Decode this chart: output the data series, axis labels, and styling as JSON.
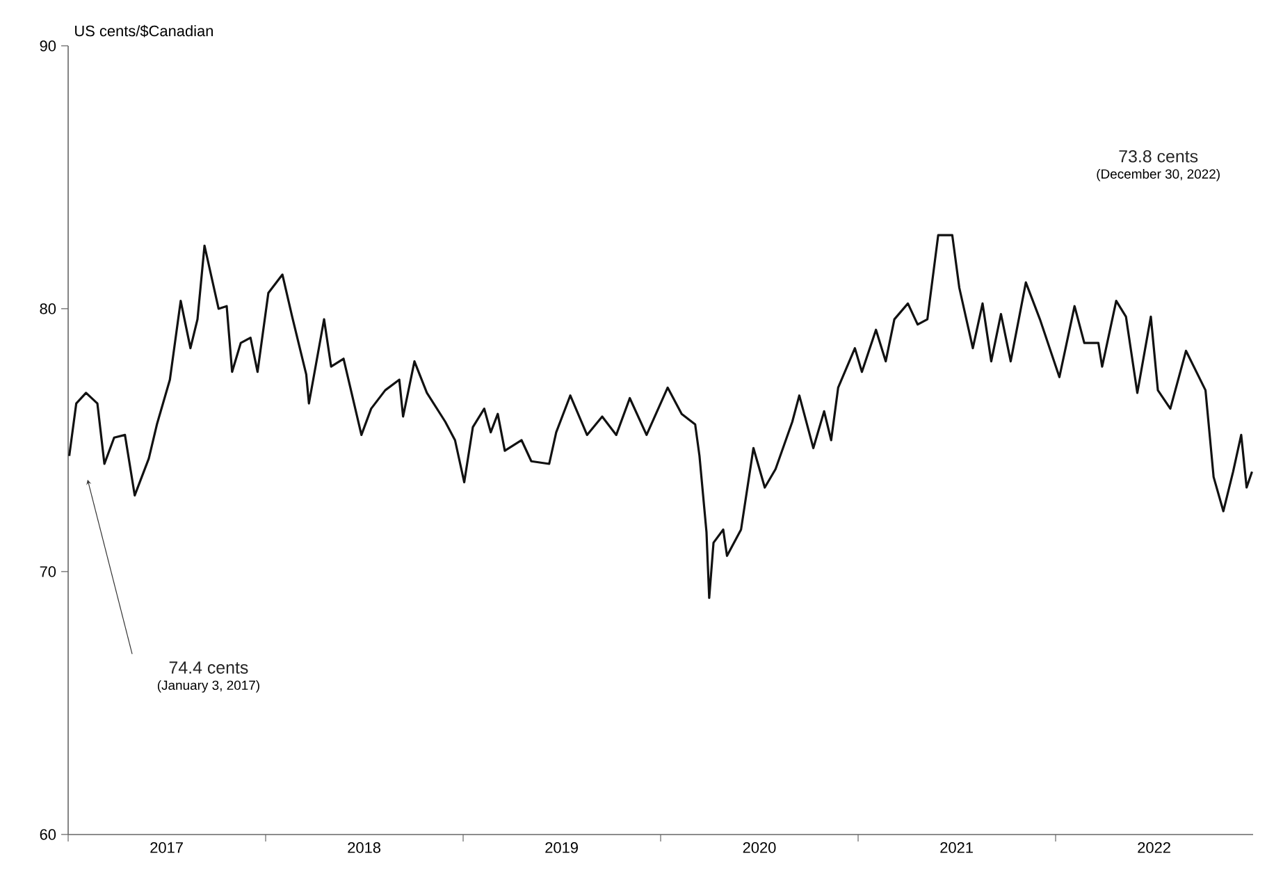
{
  "chart_data": {
    "type": "line",
    "ylabel": "US cents/$Canadian",
    "annotations": [
      "74.4 cents",
      "(January 3, 2017)",
      "73.8 cents",
      "(December 30, 2022)"
    ],
    "x": [
      "2017-01-03",
      "2017-01-16",
      "2017-02-03",
      "2017-02-24",
      "2017-03-09",
      "2017-03-27",
      "2017-04-16",
      "2017-05-04",
      "2017-05-30",
      "2017-06-14",
      "2017-07-08",
      "2017-07-28",
      "2017-08-15",
      "2017-08-28",
      "2017-09-10",
      "2017-10-06",
      "2017-10-21",
      "2017-10-31",
      "2017-11-16",
      "2017-12-04",
      "2017-12-17",
      "2018-01-06",
      "2018-02-01",
      "2018-02-19",
      "2018-03-17",
      "2018-03-22",
      "2018-04-19",
      "2018-05-02",
      "2018-05-25",
      "2018-06-27",
      "2018-07-15",
      "2018-08-10",
      "2018-09-05",
      "2018-09-12",
      "2018-10-03",
      "2018-10-26",
      "2018-11-29",
      "2018-12-17",
      "2019-01-03",
      "2019-01-19",
      "2019-02-09",
      "2019-02-21",
      "2019-03-06",
      "2019-03-19",
      "2019-04-19",
      "2019-05-07",
      "2019-06-09",
      "2019-06-22",
      "2019-07-18",
      "2019-08-18",
      "2019-09-15",
      "2019-10-11",
      "2019-11-05",
      "2019-12-06",
      "2020-01-14",
      "2020-02-09",
      "2020-03-05",
      "2020-03-13",
      "2020-03-26",
      "2020-03-31",
      "2020-04-08",
      "2020-04-26",
      "2020-05-03",
      "2020-05-29",
      "2020-06-21",
      "2020-07-12",
      "2020-08-01",
      "2020-09-01",
      "2020-09-14",
      "2020-10-10",
      "2020-10-30",
      "2020-11-12",
      "2020-11-25",
      "2020-12-26",
      "2021-01-08",
      "2021-02-03",
      "2021-02-21",
      "2021-03-09",
      "2021-04-03",
      "2021-04-21",
      "2021-05-09",
      "2021-05-29",
      "2021-06-24",
      "2021-07-07",
      "2021-08-01",
      "2021-08-19",
      "2021-09-04",
      "2021-09-22",
      "2021-10-10",
      "2021-11-07",
      "2021-12-03",
      "2022-01-08",
      "2022-02-05",
      "2022-02-23",
      "2022-03-21",
      "2022-03-28",
      "2022-04-23",
      "2022-05-11",
      "2022-06-01",
      "2022-06-26",
      "2022-07-09",
      "2022-08-01",
      "2022-08-30",
      "2022-10-05",
      "2022-10-20",
      "2022-11-07",
      "2022-11-25",
      "2022-12-10",
      "2022-12-20",
      "2022-12-30"
    ],
    "series": [
      {
        "color": "#111111",
        "values": [
          74.4,
          76.4,
          76.8,
          76.4,
          74.1,
          75.1,
          75.2,
          72.9,
          74.3,
          75.6,
          77.3,
          80.3,
          78.5,
          79.6,
          82.4,
          80.0,
          80.1,
          77.6,
          78.7,
          78.9,
          77.6,
          80.6,
          81.3,
          79.7,
          77.5,
          76.4,
          79.6,
          77.8,
          78.1,
          75.2,
          76.2,
          76.9,
          77.3,
          75.9,
          78.0,
          76.8,
          75.7,
          75.0,
          73.4,
          75.5,
          76.2,
          75.3,
          76.0,
          74.6,
          75.0,
          74.2,
          74.1,
          75.3,
          76.7,
          75.2,
          75.9,
          75.2,
          76.6,
          75.2,
          77.0,
          76.0,
          75.6,
          74.4,
          71.5,
          69.0,
          71.1,
          71.6,
          70.6,
          71.6,
          74.7,
          73.2,
          73.9,
          75.7,
          76.7,
          74.7,
          76.1,
          75.0,
          77.0,
          78.5,
          77.6,
          79.2,
          78.0,
          79.6,
          80.2,
          79.4,
          79.6,
          82.8,
          82.8,
          80.8,
          78.5,
          80.2,
          78.0,
          79.8,
          78.0,
          81.0,
          79.6,
          77.4,
          80.1,
          78.7,
          78.7,
          77.8,
          80.3,
          79.7,
          76.8,
          79.7,
          76.9,
          76.2,
          78.4,
          76.9,
          73.6,
          72.3,
          73.8,
          75.2,
          73.2,
          73.8
        ]
      }
    ],
    "xlim": [
      "2017-01-01",
      "2023-01-01"
    ],
    "xticks": [
      {
        "value": "2017-01-01",
        "label": null
      },
      {
        "value": "2018-01-01",
        "label": null
      },
      {
        "value": "2019-01-01",
        "label": null
      },
      {
        "value": "2020-01-01",
        "label": null
      },
      {
        "value": "2021-01-01",
        "label": null
      },
      {
        "value": "2022-01-01",
        "label": null
      },
      {
        "value": "2017-07-02",
        "label": "2017"
      },
      {
        "value": "2018-07-02",
        "label": "2018"
      },
      {
        "value": "2019-07-02",
        "label": "2019"
      },
      {
        "value": "2020-07-02",
        "label": "2020"
      },
      {
        "value": "2021-07-02",
        "label": "2021"
      },
      {
        "value": "2022-07-02",
        "label": "2022"
      }
    ],
    "ylim": [
      60,
      90
    ],
    "yticks": [
      60,
      70,
      80,
      90
    ]
  }
}
